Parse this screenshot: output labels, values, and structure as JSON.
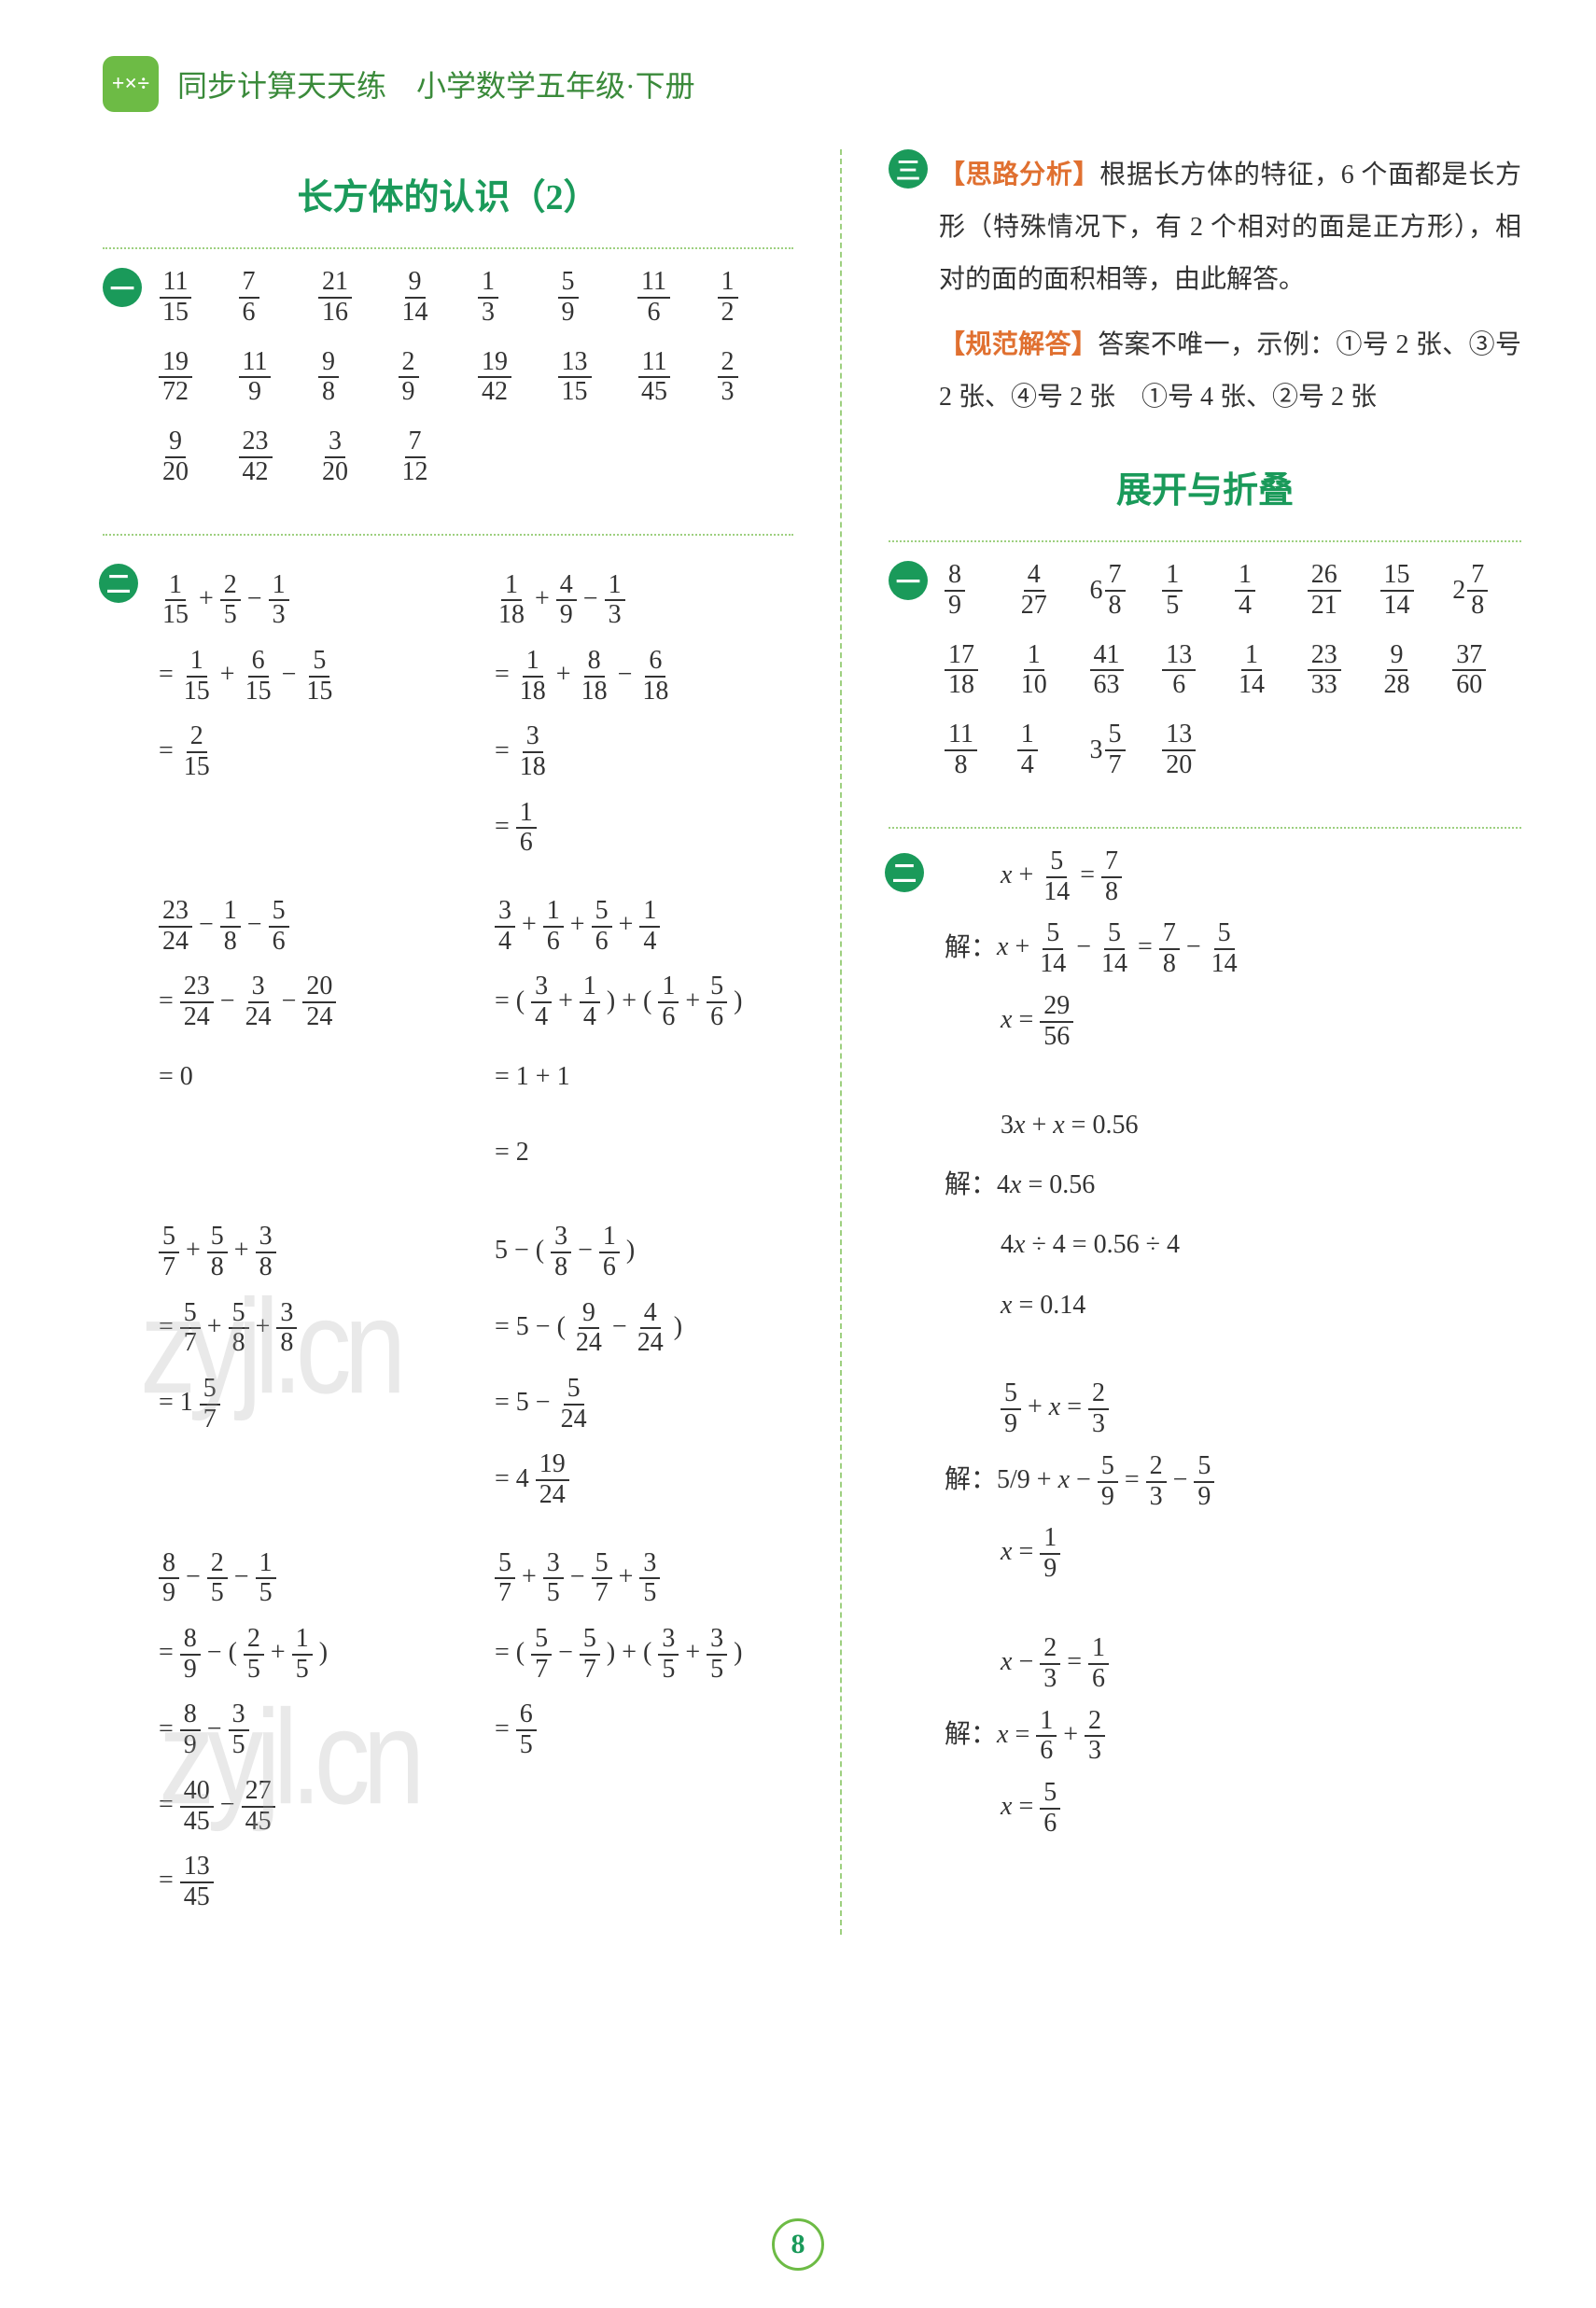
{
  "header": {
    "title": "同步计算天天练　小学数学五年级·下册",
    "icon_text": "+×÷"
  },
  "page_number": "8",
  "colors": {
    "accent_green": "#1a9a5a",
    "light_green": "#6dbb45",
    "border_green": "#9ed080",
    "orange_label": "#e07030",
    "text": "#333333",
    "watermark": "#aaaaaa"
  },
  "left": {
    "title": "长方体的认识（2）",
    "frac_rows": [
      [
        "11/15",
        "7/6",
        "21/16",
        "9/14",
        "1/3",
        "5/9",
        "11/6",
        "1/2"
      ],
      [
        "19/72",
        "11/9",
        "9/8",
        "2/9",
        "19/42",
        "13/15",
        "11/45",
        "2/3"
      ],
      [
        "9/20",
        "23/42",
        "3/20",
        "7/12"
      ]
    ],
    "problems": [
      {
        "colA": [
          "1/15 + 2/5 − 1/3",
          "= 1/15 + 6/15 − 5/15",
          "= 2/15"
        ],
        "colB": [
          "1/18 + 4/9 − 1/3",
          "= 1/18 + 8/18 − 6/18",
          "= 3/18",
          "= 1/6"
        ]
      },
      {
        "colA": [
          "23/24 − 1/8 − 5/6",
          "= 23/24 − 3/24 − 20/24",
          "= 0"
        ],
        "colB": [
          "3/4 + 1/6 + 5/6 + 1/4",
          "= ( 3/4 + 1/4 ) + ( 1/6 + 5/6 )",
          "= 1 + 1",
          "= 2"
        ]
      },
      {
        "colA": [
          "5/7 + 5/8 + 3/8",
          "= 5/7 + 5/8 + 3/8",
          "= 1 5/7"
        ],
        "colB": [
          "5 − ( 3/8 − 1/6 )",
          "= 5 − ( 9/24 − 4/24 )",
          "= 5 − 5/24",
          "= 4 19/24"
        ]
      },
      {
        "colA": [
          "8/9 − 2/5 − 1/5",
          "= 8/9 − ( 2/5 + 1/5 )",
          "= 8/9 − 3/5",
          "= 40/45 − 27/45",
          "= 13/45"
        ],
        "colB": [
          "5/7 + 3/5 − 5/7 + 3/5",
          "= ( 5/7 − 5/7 ) + ( 3/5 + 3/5 )",
          "= 6/5"
        ]
      }
    ]
  },
  "right": {
    "analysis": {
      "label": "【思路分析】",
      "text": "根据长方体的特征，6 个面都是长方形（特殊情况下，有 2 个相对的面是正方形），相对的面的面积相等，由此解答。"
    },
    "solution": {
      "label": "【规范解答】",
      "text": "答案不唯一，示例：①号 2 张、③号 2 张、④号 2 张　①号 4 张、②号 2 张"
    },
    "title2": "展开与折叠",
    "frac_rows": [
      [
        "8/9",
        "4/27",
        "6 7/8",
        "1/5",
        "1/4",
        "26/21",
        "15/14",
        "2 7/8"
      ],
      [
        "17/18",
        "1/10",
        "41/63",
        "13/6",
        "1/14",
        "23/33",
        "9/28",
        "37/60"
      ],
      [
        "11/8",
        "1/4",
        "3 5/7",
        "13/20"
      ]
    ],
    "equations": [
      {
        "lines": [
          "x + 5/14 = 7/8",
          "解：x + 5/14 − 5/14 = 7/8 − 5/14",
          "x = 29/56"
        ]
      },
      {
        "lines": [
          "3x + x = 0.56",
          "解：4x = 0.56",
          "4x ÷ 4 = 0.56 ÷ 4",
          "x = 0.14"
        ]
      },
      {
        "lines": [
          "5/9 + x = 2/3",
          "解：5/9 + x − 5/9 = 2/3 − 5/9",
          "x = 1/9"
        ]
      },
      {
        "lines": [
          "x − 2/3 = 1/6",
          "解：x = 1/6 + 2/3",
          "x = 5/6"
        ]
      }
    ]
  },
  "watermarks": [
    "zyjl.cn",
    "zyjl.cn"
  ]
}
